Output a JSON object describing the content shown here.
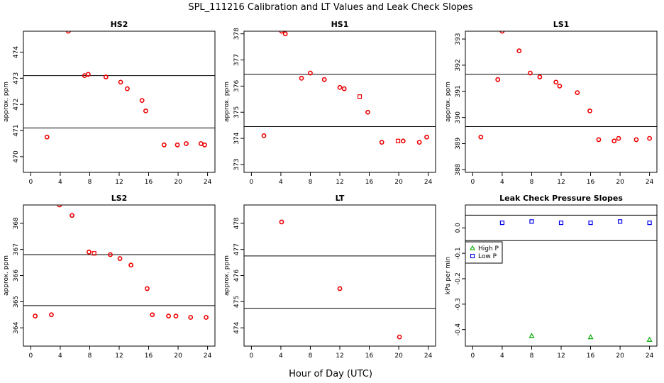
{
  "figure": {
    "title": "SPL_111216  Calibration and LT Values and Leak Check Slopes",
    "xlabel": "Hour of Day (UTC)"
  },
  "chart_data": [
    {
      "type": "scatter",
      "title": "HS2",
      "ylabel": "approx. ppm",
      "xlim": [
        -1,
        25
      ],
      "ylim": [
        469.4,
        474.8
      ],
      "xticks": [
        0,
        4,
        8,
        12,
        16,
        20,
        24
      ],
      "yticks": [
        470,
        471,
        472,
        473,
        474
      ],
      "hlines": [
        473.1,
        471.1
      ],
      "series": [
        {
          "marker": "circle",
          "color": "#ee0000",
          "points": [
            [
              2.2,
              470.75
            ],
            [
              5.1,
              474.8
            ],
            [
              7.3,
              473.1
            ],
            [
              7.8,
              473.15
            ],
            [
              10.2,
              473.05
            ],
            [
              12.2,
              472.85
            ],
            [
              13.1,
              472.6
            ],
            [
              15.1,
              472.15
            ],
            [
              15.6,
              471.75
            ],
            [
              18.1,
              470.45
            ],
            [
              19.9,
              470.45
            ],
            [
              21.1,
              470.5
            ],
            [
              23.1,
              470.5
            ],
            [
              23.6,
              470.45
            ]
          ]
        }
      ]
    },
    {
      "type": "scatter",
      "title": "HS1",
      "ylabel": "approx. ppm",
      "xlim": [
        -1,
        25
      ],
      "ylim": [
        372.7,
        378.1
      ],
      "xticks": [
        0,
        4,
        8,
        12,
        16,
        20,
        24
      ],
      "yticks": [
        373,
        374,
        375,
        376,
        377,
        378
      ],
      "hlines": [
        376.45,
        374.45
      ],
      "series": [
        {
          "marker": "circle",
          "color": "#ee0000",
          "points": [
            [
              1.7,
              374.1
            ],
            [
              4.1,
              378.1
            ],
            [
              4.6,
              378.0
            ],
            [
              6.8,
              376.3
            ],
            [
              8.0,
              376.5
            ],
            [
              9.9,
              376.25
            ],
            [
              12.0,
              375.95
            ],
            [
              12.6,
              375.9
            ],
            [
              15.8,
              375.0
            ],
            [
              17.7,
              373.85
            ],
            [
              20.6,
              373.9
            ],
            [
              22.8,
              373.85
            ],
            [
              23.8,
              374.05
            ]
          ]
        },
        {
          "marker": "square",
          "color": "#ee0000",
          "points": [
            [
              14.7,
              375.6
            ],
            [
              19.9,
              373.9
            ]
          ]
        }
      ]
    },
    {
      "type": "scatter",
      "title": "LS1",
      "ylabel": "approx. ppm",
      "xlim": [
        -1,
        25
      ],
      "ylim": [
        387.9,
        393.3
      ],
      "xticks": [
        0,
        4,
        8,
        12,
        16,
        20,
        24
      ],
      "yticks": [
        388,
        389,
        390,
        391,
        392,
        393
      ],
      "hlines": [
        391.65,
        389.65
      ],
      "series": [
        {
          "marker": "circle",
          "color": "#ee0000",
          "points": [
            [
              1.1,
              389.25
            ],
            [
              3.4,
              391.45
            ],
            [
              4.0,
              393.3
            ],
            [
              6.3,
              392.55
            ],
            [
              7.8,
              391.7
            ],
            [
              9.1,
              391.55
            ],
            [
              11.3,
              391.35
            ],
            [
              11.8,
              391.2
            ],
            [
              14.2,
              390.95
            ],
            [
              15.9,
              390.25
            ],
            [
              17.1,
              389.15
            ],
            [
              19.2,
              389.1
            ],
            [
              19.8,
              389.2
            ],
            [
              22.2,
              389.15
            ],
            [
              24.0,
              389.2
            ]
          ]
        }
      ]
    },
    {
      "type": "scatter",
      "title": "LS2",
      "ylabel": "approx. ppm",
      "xlim": [
        -1,
        25
      ],
      "ylim": [
        363.3,
        368.7
      ],
      "xticks": [
        0,
        4,
        8,
        12,
        16,
        20,
        24
      ],
      "yticks": [
        364,
        365,
        366,
        367,
        368
      ],
      "hlines": [
        366.8,
        364.85
      ],
      "series": [
        {
          "marker": "circle",
          "color": "#ee0000",
          "points": [
            [
              0.6,
              364.45
            ],
            [
              2.8,
              364.5
            ],
            [
              3.9,
              368.7
            ],
            [
              5.6,
              368.3
            ],
            [
              7.9,
              366.9
            ],
            [
              10.8,
              366.8
            ],
            [
              12.1,
              366.65
            ],
            [
              13.6,
              366.4
            ],
            [
              15.8,
              365.5
            ],
            [
              16.5,
              364.5
            ],
            [
              18.7,
              364.45
            ],
            [
              19.7,
              364.45
            ],
            [
              21.7,
              364.4
            ],
            [
              23.8,
              364.4
            ]
          ]
        },
        {
          "marker": "square",
          "color": "#ee0000",
          "points": [
            [
              8.6,
              366.85
            ]
          ]
        }
      ]
    },
    {
      "type": "scatter",
      "title": "LT",
      "ylabel": "approx. ppm",
      "xlim": [
        -1,
        25
      ],
      "ylim": [
        473.3,
        478.7
      ],
      "xticks": [
        0,
        4,
        8,
        12,
        16,
        20,
        24
      ],
      "yticks": [
        474,
        475,
        476,
        477,
        478
      ],
      "hlines": [
        476.75,
        474.75
      ],
      "series": [
        {
          "marker": "circle",
          "color": "#ee0000",
          "points": [
            [
              4.1,
              478.05
            ],
            [
              12.0,
              475.5
            ],
            [
              20.1,
              473.65
            ]
          ]
        }
      ]
    },
    {
      "type": "scatter",
      "title": "Leak Check Pressure Slopes",
      "ylabel": "kPa per min",
      "xlim": [
        -1,
        25
      ],
      "ylim": [
        -0.465,
        0.09
      ],
      "xticks": [
        0,
        4,
        8,
        12,
        16,
        20,
        24
      ],
      "yticks": [
        0.0,
        -0.1,
        -0.2,
        -0.3,
        -0.4
      ],
      "ytick_labels": [
        "0.0",
        "-0.1",
        "-0.2",
        "-0.3",
        "-0.4"
      ],
      "hlines": [
        0.05,
        -0.05
      ],
      "legend": {
        "position": "left",
        "entries": [
          {
            "label": "High P",
            "color": "#00aa00"
          },
          {
            "label": "Low P",
            "color": "#0000ee"
          }
        ]
      },
      "series": [
        {
          "name": "High P",
          "marker": "triangle",
          "color": "#00aa00",
          "points": [
            [
              8.0,
              -0.425
            ],
            [
              16.0,
              -0.43
            ],
            [
              24.0,
              -0.44
            ]
          ]
        },
        {
          "name": "Low P",
          "marker": "square",
          "color": "#0000ee",
          "points": [
            [
              4.0,
              0.02
            ],
            [
              8.0,
              0.025
            ],
            [
              12.0,
              0.02
            ],
            [
              16.0,
              0.02
            ],
            [
              20.0,
              0.025
            ],
            [
              24.0,
              0.02
            ]
          ]
        }
      ]
    }
  ]
}
